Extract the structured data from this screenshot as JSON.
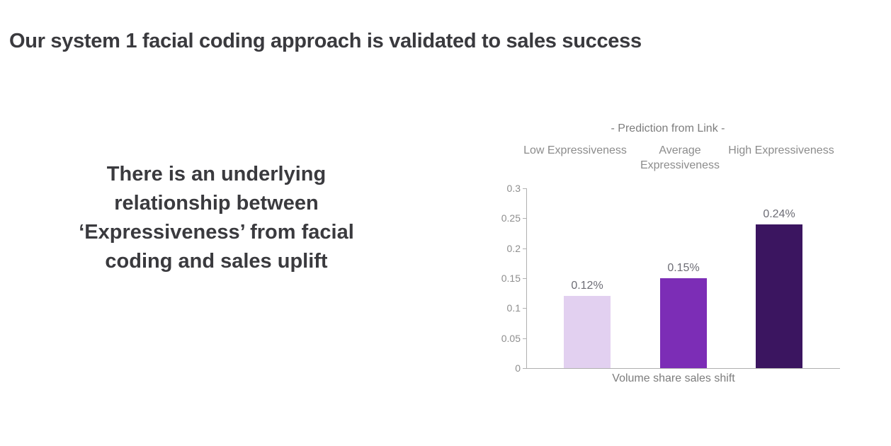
{
  "slide": {
    "title": "Our system 1 facial coding approach is validated to sales success",
    "message_lines": [
      "There is an underlying",
      "relationship between",
      "‘Expressiveness’ from facial",
      "coding and sales uplift"
    ],
    "text_color": "#3a3a3e"
  },
  "chart_data": {
    "type": "bar",
    "title": "- Prediction from Link -",
    "categories": [
      "Low Expressiveness",
      "Average Expressiveness",
      "High Expressiveness"
    ],
    "values": [
      0.12,
      0.15,
      0.24
    ],
    "data_labels": [
      "0.12%",
      "0.15%",
      "0.24%"
    ],
    "xlabel": "Volume share sales shift",
    "ylabel": "",
    "ylim": [
      0,
      0.3
    ],
    "yticks": [
      0,
      0.05,
      0.1,
      0.15,
      0.2,
      0.25,
      0.3
    ],
    "ytick_labels": [
      "0",
      "0.05",
      "0.1",
      "0.15",
      "0.2",
      "0.25",
      "0.3"
    ],
    "grid": false,
    "legend": "none",
    "bar_colors": [
      "#e2d0f0",
      "#7c2db6",
      "#3b1560"
    ],
    "axis_color": "#b0b0b0",
    "data_label_color": "#6d6d75",
    "axis_text_color": "#8e8e8e",
    "header_text_color": "#8c8c8c"
  }
}
